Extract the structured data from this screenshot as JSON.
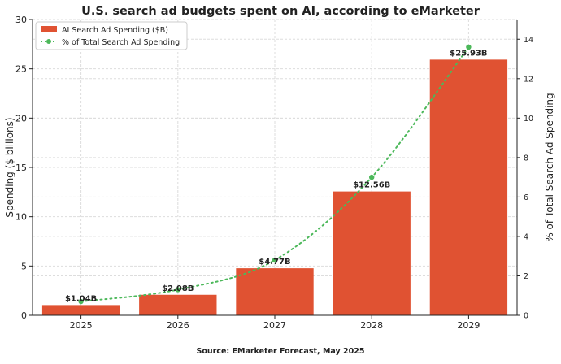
{
  "chart_data": {
    "type": "bar",
    "title": "U.S. search ad budgets spent on AI, according to eMarketer",
    "source": "Source: EMarketer Forecast, May 2025",
    "categories": [
      "2025",
      "2026",
      "2027",
      "2028",
      "2029"
    ],
    "series": [
      {
        "name": "AI Search Ad Spending ($B)",
        "type": "bar",
        "axis": "left",
        "color": "#e05232",
        "values": [
          1.04,
          2.08,
          4.77,
          12.56,
          25.93
        ],
        "data_labels": [
          "$1.04B",
          "$2.08B",
          "$4.77B",
          "$12.56B",
          "$25.93B"
        ]
      },
      {
        "name": "% of Total Search Ad Spending",
        "type": "line",
        "style": "dotted",
        "axis": "right",
        "color": "#4cb85a",
        "values": [
          0.7,
          1.3,
          2.8,
          7.0,
          13.6
        ]
      }
    ],
    "ylabel": "Spending ($ billions)",
    "y2label": "% of Total Search Ad Spending",
    "ylim": [
      0,
      30
    ],
    "y2lim": [
      0,
      15
    ],
    "yticks": [
      "0",
      "5",
      "10",
      "15",
      "20",
      "25",
      "30"
    ],
    "y2ticks": [
      "0",
      "2",
      "4",
      "6",
      "8",
      "10",
      "12",
      "14"
    ],
    "grid": true,
    "legend": "top-left"
  }
}
